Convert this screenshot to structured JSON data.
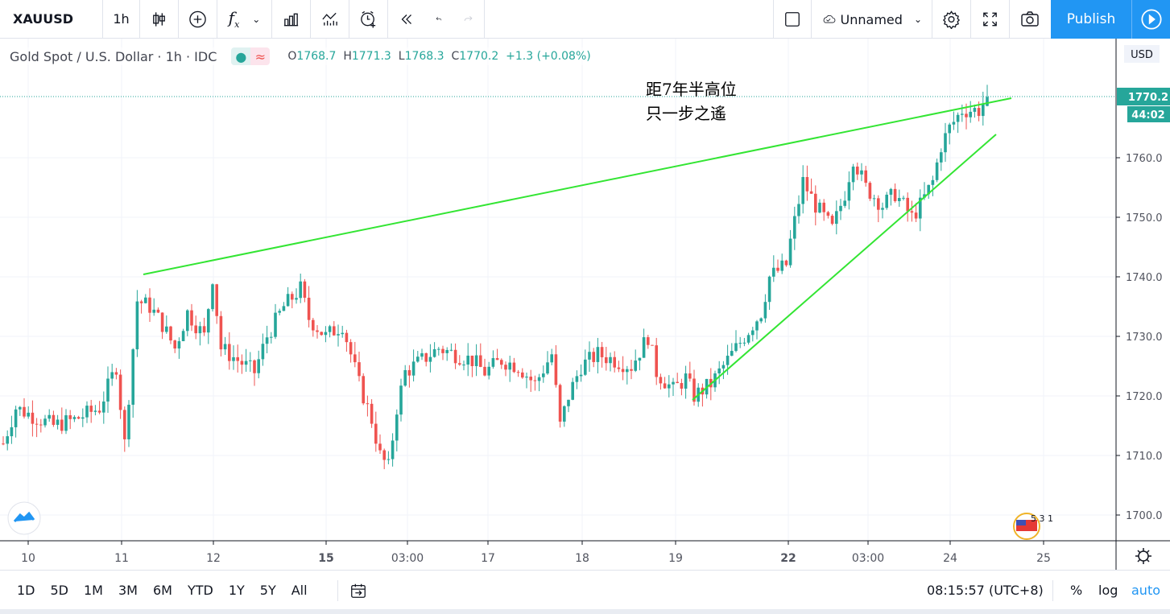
{
  "toolbar": {
    "symbol": "XAUUSD",
    "interval": "1h",
    "layout_name": "Unnamed",
    "publish": "Publish",
    "icons": [
      "candles-icon",
      "add-compare-icon",
      "indicators-icon",
      "chevron-down-icon",
      "financials-icon",
      "templates-icon",
      "alert-icon",
      "replay-icon",
      "undo-icon",
      "redo-icon",
      "square-icon",
      "cloud-icon",
      "settings-icon",
      "fullscreen-icon",
      "camera-icon",
      "play-icon"
    ]
  },
  "legend": {
    "title": "Gold Spot / U.S. Dollar · 1h · IDC",
    "o_label": "O",
    "o": "1768.7",
    "h_label": "H",
    "h": "1771.3",
    "l_label": "L",
    "l": "1768.3",
    "c_label": "C",
    "c": "1770.2",
    "change": "+1.3 (+0.08%)"
  },
  "price_axis": {
    "currency": "USD",
    "ticks": [
      "1760.0",
      "1750.0",
      "1740.0",
      "1730.0",
      "1720.0",
      "1710.0",
      "1700.0"
    ],
    "last_price": "1770.2",
    "countdown": "44:02"
  },
  "time_axis": {
    "ticks": [
      "10",
      "11",
      "12",
      "15",
      "03:00",
      "17",
      "18",
      "19",
      "22",
      "03:00",
      "24",
      "25"
    ]
  },
  "annotation": {
    "line1": "距7年半高位",
    "line2": "只一步之遙"
  },
  "events_badge": "5 3 1",
  "bottombar": {
    "ranges": [
      "1D",
      "5D",
      "1M",
      "3M",
      "6M",
      "YTD",
      "1Y",
      "5Y",
      "All"
    ],
    "time": "08:15:57 (UTC+8)",
    "percent": "%",
    "log": "log",
    "auto": "auto"
  },
  "colors": {
    "up": "#26a69a",
    "down": "#ef5350",
    "trendline": "#33e533",
    "accent": "#2196f3"
  },
  "chart_data": {
    "type": "candlestick",
    "ylim": [
      1697,
      1776
    ],
    "price_line": 1770.2,
    "close_path": [
      [
        0,
        1712
      ],
      [
        3,
        1718
      ],
      [
        6,
        1717
      ],
      [
        12,
        1715
      ],
      [
        17,
        1716
      ],
      [
        23,
        1718
      ],
      [
        27,
        1725
      ],
      [
        29,
        1712
      ],
      [
        32,
        1736
      ],
      [
        35,
        1735
      ],
      [
        38,
        1732
      ],
      [
        41,
        1728
      ],
      [
        44,
        1734
      ],
      [
        48,
        1730
      ],
      [
        50,
        1740
      ],
      [
        52,
        1728
      ],
      [
        56,
        1726
      ],
      [
        60,
        1724
      ],
      [
        63,
        1730
      ],
      [
        67,
        1735
      ],
      [
        71,
        1738
      ],
      [
        73,
        1733
      ],
      [
        77,
        1730
      ],
      [
        81,
        1732
      ],
      [
        85,
        1722
      ],
      [
        88,
        1716
      ],
      [
        90,
        1710
      ],
      [
        92,
        1708
      ],
      [
        94,
        1718
      ],
      [
        96,
        1724
      ],
      [
        100,
        1726
      ],
      [
        104,
        1728
      ],
      [
        108,
        1727
      ],
      [
        112,
        1726
      ],
      [
        115,
        1724
      ],
      [
        119,
        1726
      ],
      [
        123,
        1725
      ],
      [
        127,
        1722
      ],
      [
        131,
        1727
      ],
      [
        133,
        1715
      ],
      [
        135,
        1720
      ],
      [
        138,
        1725
      ],
      [
        142,
        1727
      ],
      [
        146,
        1726
      ],
      [
        150,
        1725
      ],
      [
        154,
        1730
      ],
      [
        156,
        1724
      ],
      [
        160,
        1721
      ],
      [
        163,
        1723
      ],
      [
        165,
        1720
      ],
      [
        169,
        1722
      ],
      [
        173,
        1726
      ],
      [
        177,
        1730
      ],
      [
        181,
        1734
      ],
      [
        183,
        1740
      ],
      [
        187,
        1742
      ],
      [
        188,
        1746
      ],
      [
        191,
        1756
      ],
      [
        194,
        1752
      ],
      [
        196,
        1750
      ],
      [
        198,
        1748
      ],
      [
        201,
        1754
      ],
      [
        203,
        1760
      ],
      [
        206,
        1755
      ],
      [
        210,
        1752
      ],
      [
        213,
        1754
      ],
      [
        217,
        1750
      ],
      [
        219,
        1752
      ],
      [
        222,
        1756
      ],
      [
        224,
        1762
      ],
      [
        226,
        1765
      ],
      [
        229,
        1768
      ],
      [
        233,
        1768
      ],
      [
        235,
        1770.2
      ]
    ],
    "trendlines": [
      {
        "from": [
          "11 07:00",
          1740.2
        ],
        "to": [
          "24 15:00",
          1769.8
        ]
      },
      {
        "from": [
          "19 09:00",
          1719.2
        ],
        "to": [
          "24 12:00",
          1763.7
        ]
      }
    ]
  }
}
